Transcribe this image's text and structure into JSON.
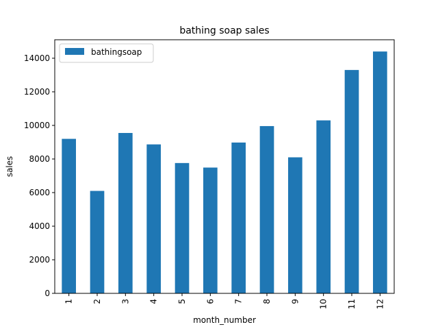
{
  "chart_data": {
    "type": "bar",
    "title": "bathing soap sales",
    "xlabel": "month_number",
    "ylabel": "sales",
    "categories": [
      "1",
      "2",
      "3",
      "4",
      "5",
      "6",
      "7",
      "8",
      "9",
      "10",
      "11",
      "12"
    ],
    "series": [
      {
        "name": "bathingsoap",
        "values": [
          9200,
          6100,
          9550,
          8870,
          7760,
          7490,
          8980,
          9960,
          8100,
          10300,
          13300,
          14400
        ],
        "color": "#1f77b4"
      }
    ],
    "ylim": [
      0,
      15100
    ],
    "yticks": [
      0,
      2000,
      4000,
      6000,
      8000,
      10000,
      12000,
      14000
    ],
    "grid": false,
    "legend_position": "top-left",
    "x_tick_rotation": "vertical"
  }
}
